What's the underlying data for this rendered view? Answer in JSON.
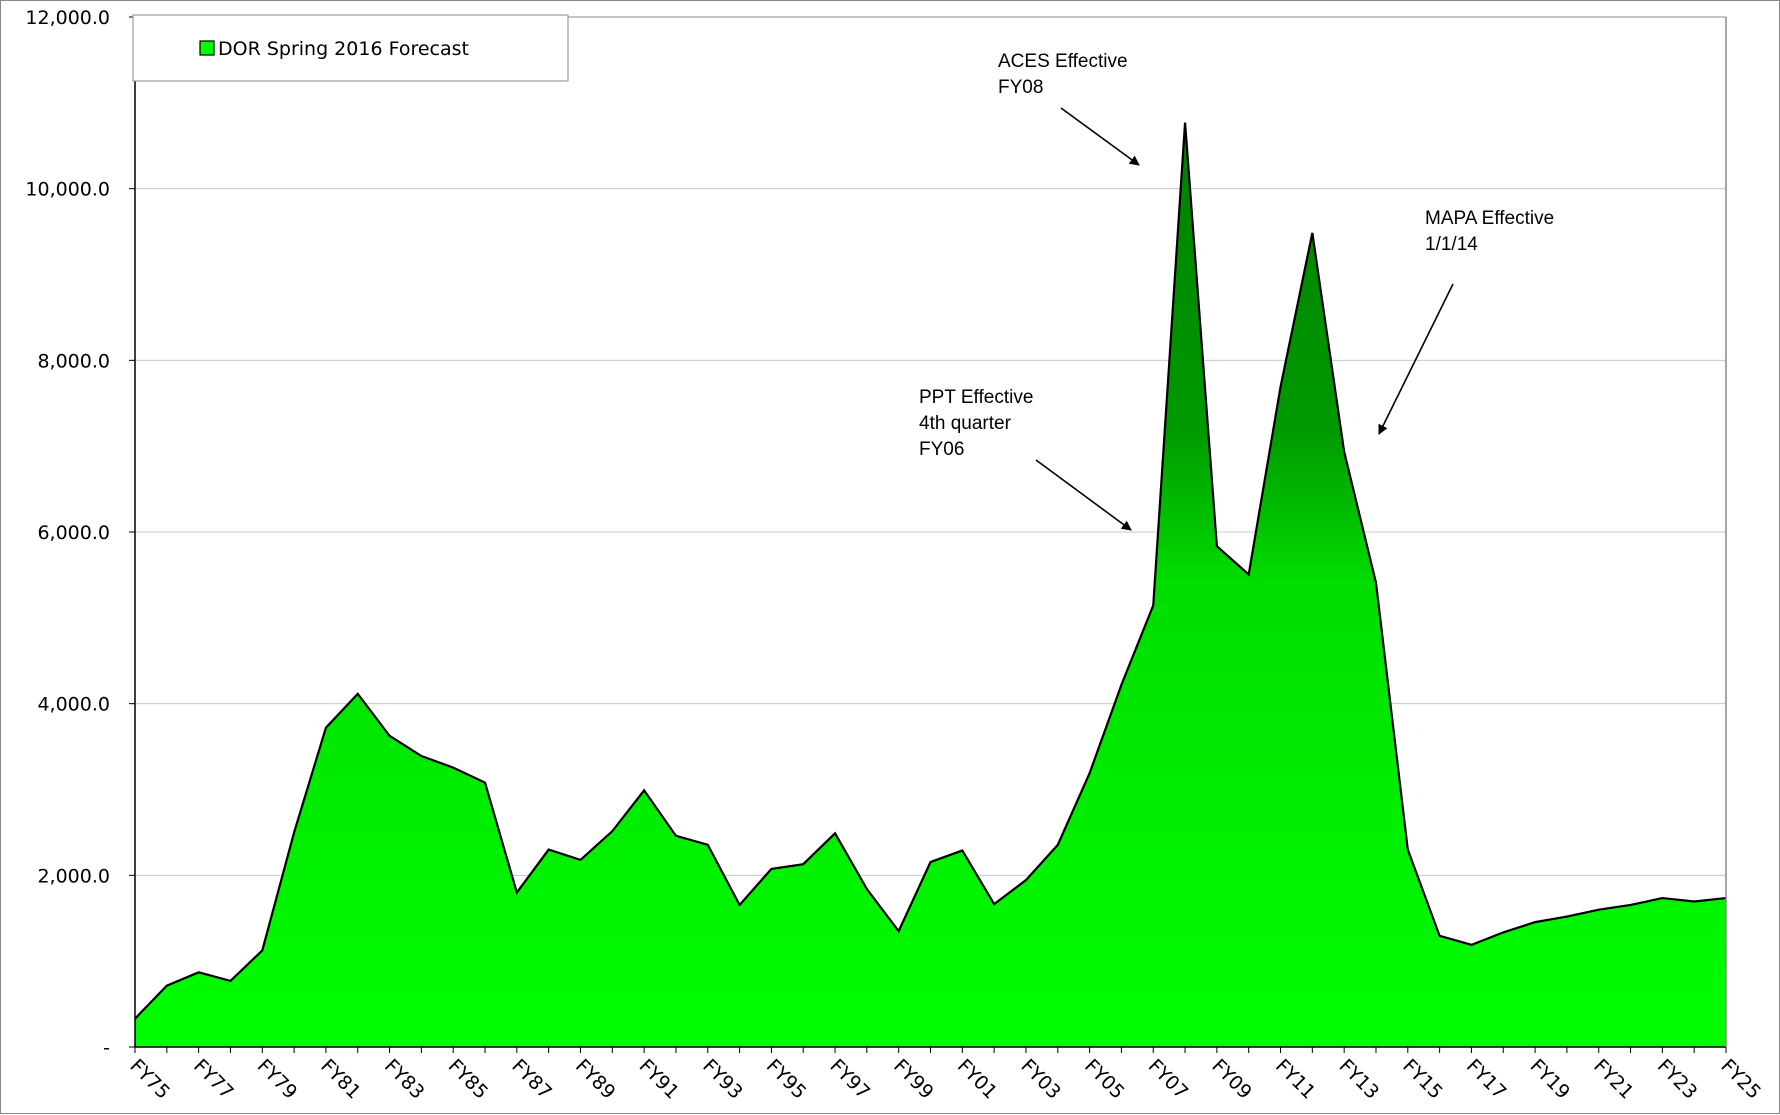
{
  "chart_data": {
    "type": "area",
    "categories": [
      "FY75",
      null,
      "FY77",
      null,
      "FY79",
      null,
      "FY81",
      null,
      "FY83",
      null,
      "FY85",
      null,
      "FY87",
      null,
      "FY89",
      null,
      "FY91",
      null,
      "FY93",
      null,
      "FY95",
      null,
      "FY97",
      null,
      "FY99",
      null,
      "FY01",
      null,
      "FY03",
      null,
      "FY05",
      null,
      "FY07",
      null,
      "FY09",
      null,
      "FY11",
      null,
      "FY13",
      null,
      "FY15",
      null,
      "FY17",
      null,
      "FY19",
      null,
      "FY21",
      null,
      "FY23",
      null,
      "FY25"
    ],
    "series": [
      {
        "name": "DOR Spring 2016 Forecast",
        "color": "#00ff00",
        "values": [
          330,
          715,
          870,
          770,
          1125,
          2500,
          3720,
          4115,
          3625,
          3390,
          3255,
          3080,
          1800,
          2300,
          2180,
          2515,
          2990,
          2460,
          2355,
          1655,
          2075,
          2130,
          2490,
          1840,
          1350,
          2155,
          2290,
          1665,
          1945,
          2355,
          3190,
          4220,
          5145,
          10770,
          5835,
          5505,
          7690,
          9485,
          6935,
          5410,
          2300,
          1295,
          1190,
          1335,
          1455,
          1520,
          1600,
          1655,
          1735,
          1695,
          1735
        ]
      }
    ],
    "ylim": [
      0,
      12000
    ],
    "yticks": [
      {
        "value": 0,
        "label": "-"
      },
      {
        "value": 2000,
        "label": "2,000.0"
      },
      {
        "value": 4000,
        "label": "4,000.0"
      },
      {
        "value": 6000,
        "label": "6,000.0"
      },
      {
        "value": 8000,
        "label": "8,000.0"
      },
      {
        "value": 10000,
        "label": "10,000.0"
      },
      {
        "value": 12000,
        "label": "12,000.0"
      }
    ],
    "grid": true,
    "legend": "top-left",
    "annotations": [
      {
        "lines": [
          "ACES Effective",
          "FY08"
        ]
      },
      {
        "lines": [
          "PPT Effective",
          "4th quarter",
          "FY06"
        ]
      },
      {
        "lines": [
          "MAPA Effective",
          "1/1/14"
        ]
      }
    ]
  }
}
